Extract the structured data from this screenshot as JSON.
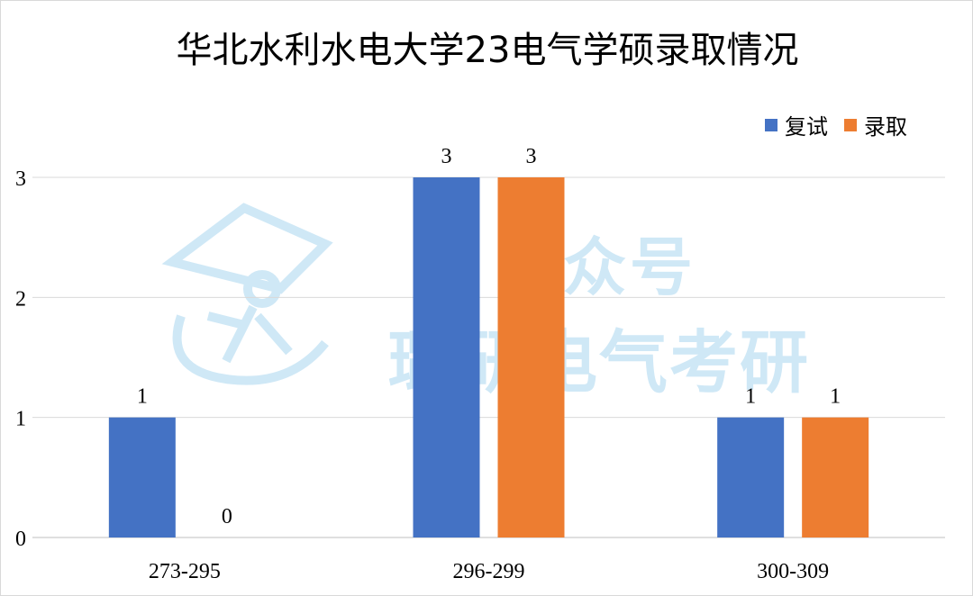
{
  "chart_data": {
    "type": "bar",
    "title": "华北水利水电大学23电气学硕录取情况",
    "categories": [
      "273-295",
      "296-299",
      "300-309"
    ],
    "series": [
      {
        "name": "复试",
        "color": "#4472C4",
        "values": [
          1,
          3,
          1
        ]
      },
      {
        "name": "录取",
        "color": "#ED7D31",
        "values": [
          0,
          3,
          1
        ]
      }
    ],
    "ylim": [
      0,
      3
    ],
    "yticks": [
      0,
      1,
      2,
      3
    ],
    "grid": true,
    "legend_position": "top-right",
    "data_labels": true
  },
  "watermark": {
    "line1": "公众号",
    "line2": "璐研电气考研"
  }
}
